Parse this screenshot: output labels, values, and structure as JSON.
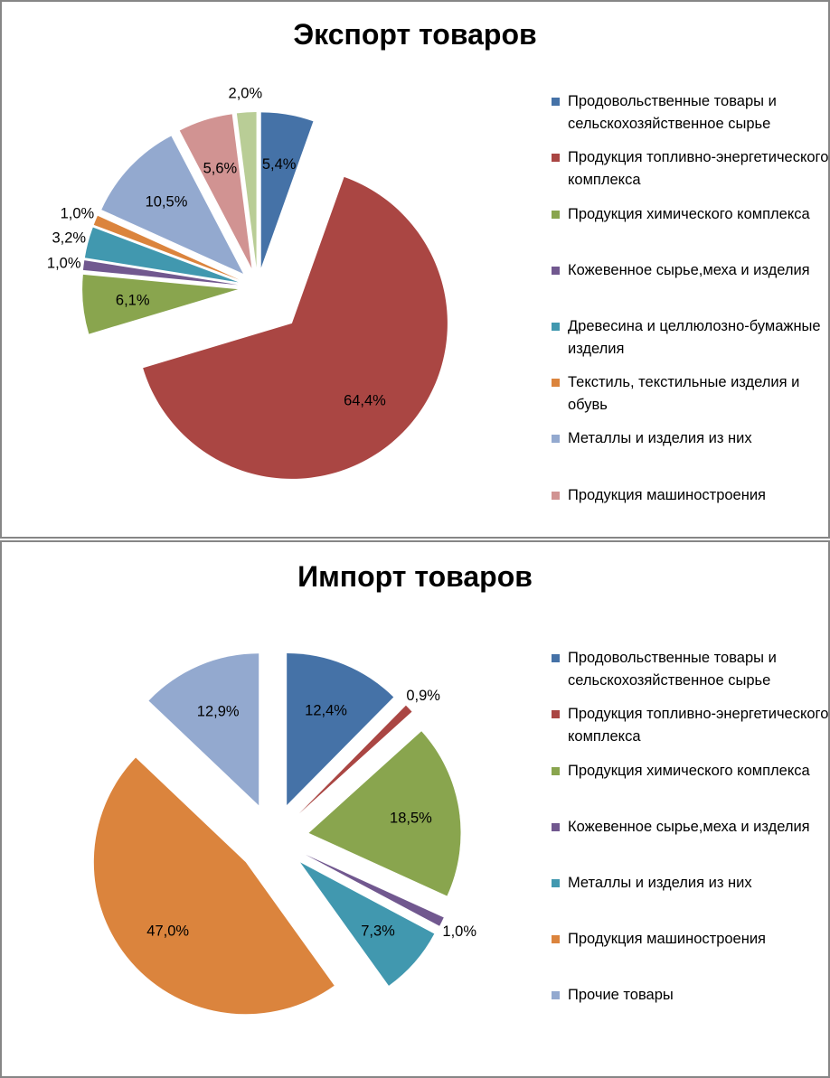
{
  "chart_data": [
    {
      "type": "pie",
      "title": "Экспорт товаров",
      "labels_format": "percent",
      "slices": [
        {
          "name": "Продовольственные товары и сельскохозяйственное сырье",
          "value": 5.4,
          "label": "5,4%",
          "color": "#4572A7"
        },
        {
          "name": "Продукция топливно-энергетического комплекса",
          "value": 64.4,
          "label": "64,4%",
          "color": "#AA4643"
        },
        {
          "name": "Продукция химического комплекса",
          "value": 6.1,
          "label": "6,1%",
          "color": "#89A54E"
        },
        {
          "name": "Кожевенное сырье,меха и изделия",
          "value": 1.0,
          "label": "1,0%",
          "color": "#71588F"
        },
        {
          "name": "Древесина и целлюлозно-бумажные изделия",
          "value": 3.2,
          "label": "3,2%",
          "color": "#4198AF"
        },
        {
          "name": "Текстиль, текстильные изделия и обувь",
          "value": 1.0,
          "label": "1,0%",
          "color": "#DB843D"
        },
        {
          "name": "Металлы и изделия из них",
          "value": 10.5,
          "label": "10,5%",
          "color": "#93A9CF"
        },
        {
          "name": "Продукция машиностроения",
          "value": 5.6,
          "label": "5,6%",
          "color": "#D19392"
        },
        {
          "name": "",
          "value": 2.0,
          "label": "2,0%",
          "color": "#B9CD96"
        }
      ],
      "legend": [
        {
          "text": "Продовольственные товары и сельскохозяйственное сырье",
          "color": "#4572A7"
        },
        {
          "text": "Продукция топливно-энергетического комплекса",
          "color": "#AA4643"
        },
        {
          "text": "Продукция химического комплекса",
          "color": "#89A54E"
        },
        {
          "text": "Кожевенное сырье,меха и изделия",
          "color": "#71588F"
        },
        {
          "text": "Древесина и целлюлозно-бумажные изделия",
          "color": "#4198AF"
        },
        {
          "text": "Текстиль, текстильные изделия и обувь",
          "color": "#DB843D"
        },
        {
          "text": "Металлы и изделия из них",
          "color": "#93A9CF"
        },
        {
          "text": "Продукция машиностроения",
          "color": "#D19392"
        }
      ],
      "legend_placement": "right",
      "exploded": true
    },
    {
      "type": "pie",
      "title": "Импорт товаров",
      "labels_format": "percent",
      "slices": [
        {
          "name": "Продовольственные товары и сельскохозяйственное сырье",
          "value": 12.4,
          "label": "12,4%",
          "color": "#4572A7"
        },
        {
          "name": "Продукция топливно-энергетического комплекса",
          "value": 0.9,
          "label": "0,9%",
          "color": "#AA4643"
        },
        {
          "name": "Продукция химического комплекса",
          "value": 18.5,
          "label": "18,5%",
          "color": "#89A54E"
        },
        {
          "name": "Кожевенное сырье,меха и изделия",
          "value": 1.0,
          "label": "1,0%",
          "color": "#71588F"
        },
        {
          "name": "Металлы и изделия из них",
          "value": 7.3,
          "label": "7,3%",
          "color": "#4198AF"
        },
        {
          "name": "Продукция машиностроения",
          "value": 47.0,
          "label": "47,0%",
          "color": "#DB843D"
        },
        {
          "name": "Прочие товары",
          "value": 12.9,
          "label": "12,9%",
          "color": "#93A9CF"
        }
      ],
      "legend": [
        {
          "text": "Продовольственные товары и сельскохозяйственное сырье",
          "color": "#4572A7"
        },
        {
          "text": "Продукция топливно-энергетического комплекса",
          "color": "#AA4643"
        },
        {
          "text": "Продукция химического комплекса",
          "color": "#89A54E"
        },
        {
          "text": "Кожевенное сырье,меха и изделия",
          "color": "#71588F"
        },
        {
          "text": "Металлы и изделия из них",
          "color": "#4198AF"
        },
        {
          "text": "Продукция машиностроения",
          "color": "#DB843D"
        },
        {
          "text": "Прочие товары",
          "color": "#93A9CF"
        }
      ],
      "legend_placement": "right",
      "exploded": true
    }
  ]
}
